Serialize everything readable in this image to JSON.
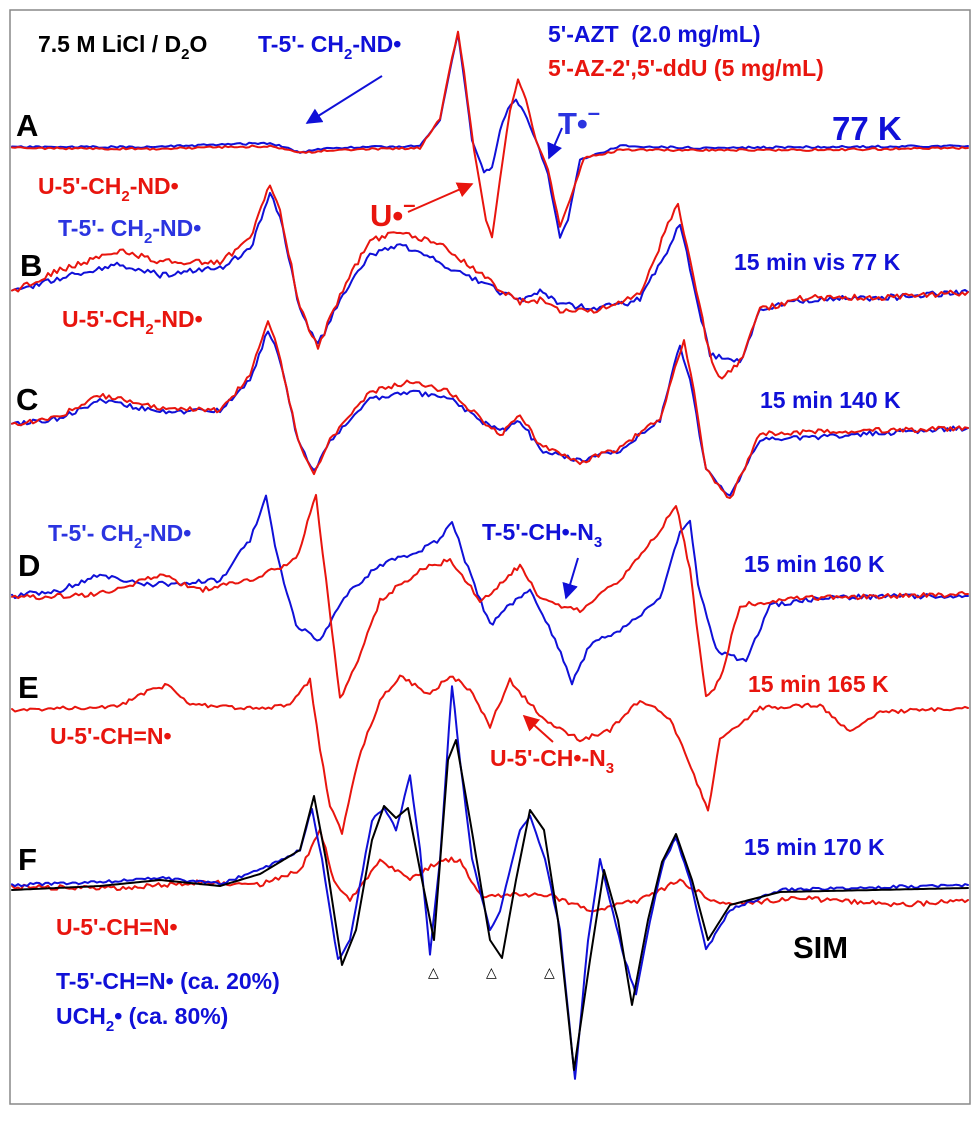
{
  "colors": {
    "red": "#e8150e",
    "blue": "#1010d8",
    "black": "#000000",
    "frame": "#888888"
  },
  "header": {
    "solvent_part1": "7.5 M LiCl / D",
    "solvent_sub": "2",
    "solvent_part2": "O",
    "radical_pre": "T-5'- CH",
    "radical_sub": "2",
    "radical_post": "-ND•",
    "legend_blue": "5'-AZT  (2.0 mg/mL)",
    "legend_red": "5'-AZ-2',5'-ddU (5 mg/mL)"
  },
  "panels": {
    "A": {
      "letter": "A",
      "condition": "77 K",
      "t_anion": "T•",
      "t_anion_sup": "–",
      "u_anion": "U•",
      "u_anion_sup": "–"
    },
    "B": {
      "letter": "B",
      "condition": "15 min vis 77 K",
      "red_pre": "U-5'-CH",
      "red_sub": "2",
      "red_post": "-ND•",
      "blue_pre": "T-5'- CH",
      "blue_sub": "2",
      "blue_post": "-ND•"
    },
    "C": {
      "letter": "C",
      "condition": "15 min 140 K",
      "red_pre": "U-5'-CH",
      "red_sub": "2",
      "red_post": "-ND•"
    },
    "D": {
      "letter": "D",
      "condition": "15 min 160 K",
      "blue_pre": "T-5'- CH",
      "blue_sub": "2",
      "blue_post": "-ND•",
      "azide_pre": "T-5'-CH•-N",
      "azide_sub": "3"
    },
    "E": {
      "letter": "E",
      "condition": "15 min 165 K",
      "imine": "U-5'-CH=N•",
      "azide_pre": "U-5'-CH•-N",
      "azide_sub": "3"
    },
    "F": {
      "letter": "F",
      "condition": "15 min 170 K",
      "red_label": "U-5'-CH=N•",
      "blue_label1": "T-5'-CH=N• (ca. 20%)",
      "blue_label2_pre": "UCH",
      "blue_label2_sub": "2",
      "blue_label2_post": "• (ca. 80%)",
      "sim": "SIM",
      "markers": "△"
    }
  },
  "chart_data": [
    {
      "panel": "A",
      "type": "line",
      "series": [
        {
          "name": "5'-AZT  (2.0 mg/mL)",
          "color": "#1010d8"
        },
        {
          "name": "5'-AZ-2',5'-ddU (5 mg/mL)",
          "color": "#e8150e"
        }
      ],
      "condition": "77 K"
    },
    {
      "panel": "B",
      "type": "line",
      "series": [
        {
          "color": "#1010d8"
        },
        {
          "color": "#e8150e"
        }
      ],
      "condition": "15 min vis 77 K"
    },
    {
      "panel": "C",
      "type": "line",
      "series": [
        {
          "color": "#1010d8"
        },
        {
          "color": "#e8150e"
        }
      ],
      "condition": "15 min 140 K"
    },
    {
      "panel": "D",
      "type": "line",
      "series": [
        {
          "color": "#1010d8"
        },
        {
          "color": "#e8150e"
        }
      ],
      "condition": "15 min 160 K"
    },
    {
      "panel": "E",
      "type": "line",
      "series": [
        {
          "color": "#e8150e"
        }
      ],
      "condition": "15 min 165 K"
    },
    {
      "panel": "F",
      "type": "line",
      "series": [
        {
          "color": "#1010d8"
        },
        {
          "color": "#e8150e"
        },
        {
          "name": "SIM",
          "color": "#000000"
        }
      ],
      "condition": "15 min 170 K"
    }
  ]
}
